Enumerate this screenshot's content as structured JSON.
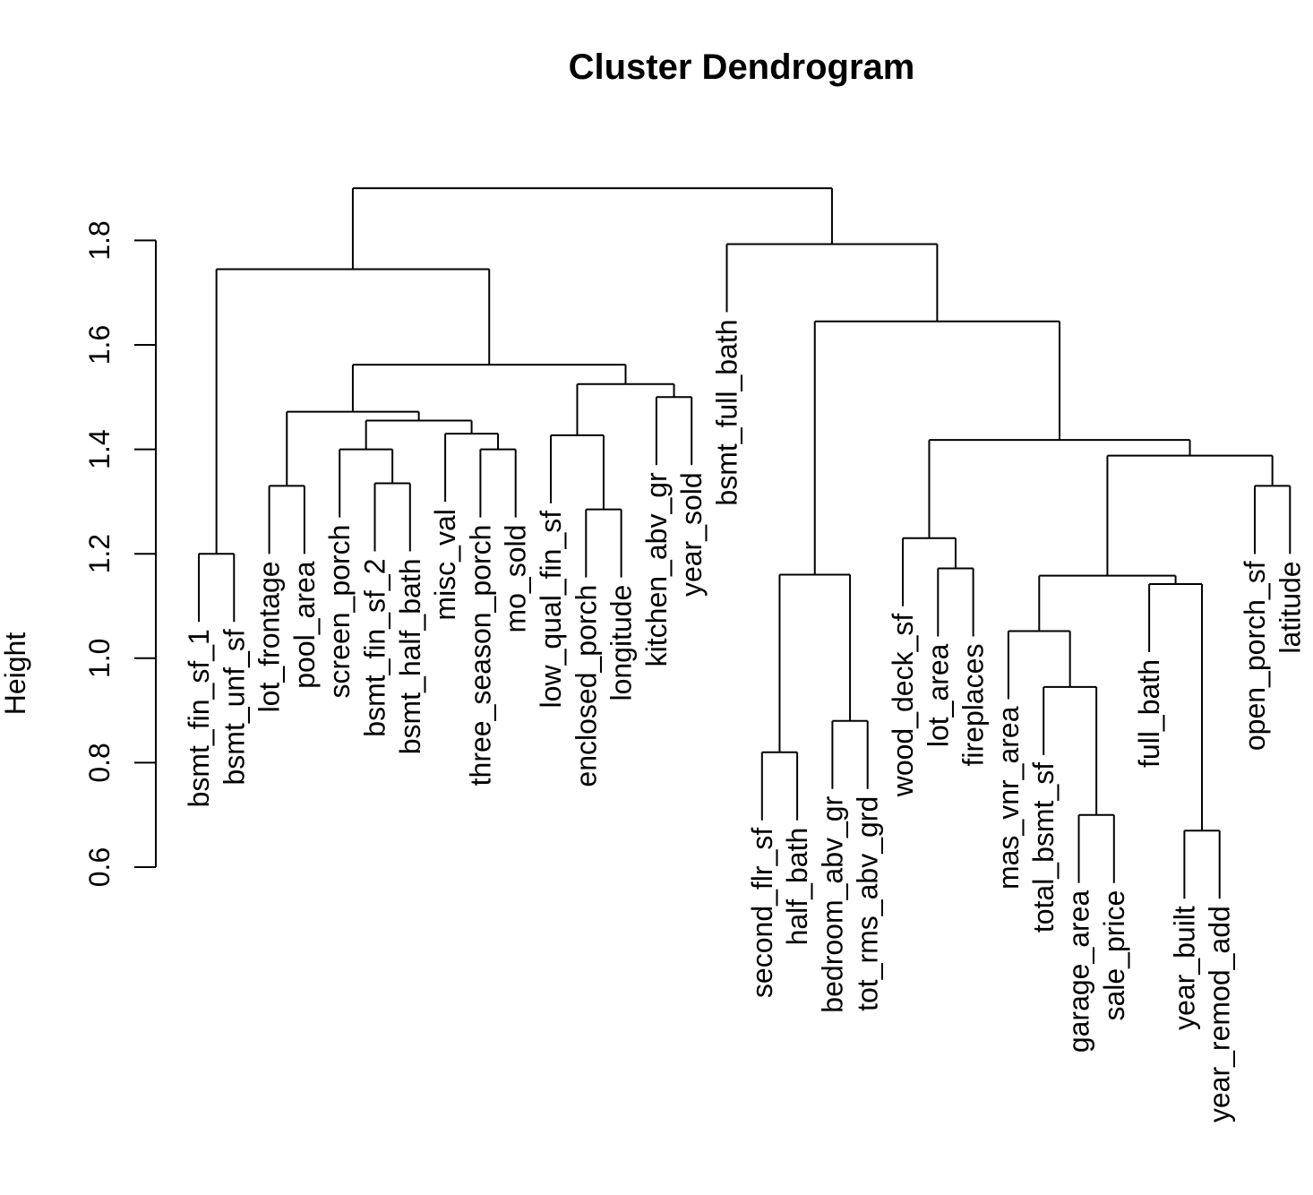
{
  "chart_data": {
    "type": "dendrogram",
    "title": "Cluster Dendrogram",
    "ylabel": "Height",
    "xlabel": "",
    "yticks": [
      0.6,
      0.8,
      1.0,
      1.2,
      1.4,
      1.6,
      1.8
    ],
    "ylim": [
      0.6,
      1.9
    ],
    "leaves": [
      "bsmt_fin_sf_1",
      "bsmt_unf_sf",
      "lot_frontage",
      "pool_area",
      "screen_porch",
      "bsmt_fin_sf_2",
      "bsmt_half_bath",
      "misc_val",
      "three_season_porch",
      "mo_sold",
      "low_qual_fin_sf",
      "enclosed_porch",
      "longitude",
      "kitchen_abv_gr",
      "year_sold",
      "bsmt_full_bath",
      "second_flr_sf",
      "half_bath",
      "bedroom_abv_gr",
      "tot_rms_abv_grd",
      "wood_deck_sf",
      "lot_area",
      "fireplaces",
      "mas_vnr_area",
      "total_bsmt_sf",
      "garage_area",
      "sale_price",
      "full_bath",
      "year_built",
      "year_remod_add",
      "open_porch_sf",
      "latitude"
    ],
    "merges": [
      {
        "a": "bsmt_fin_sf_1",
        "b": "bsmt_unf_sf",
        "height": 1.2
      },
      {
        "a": "lot_frontage",
        "b": "pool_area",
        "height": 1.33
      },
      {
        "a": "bsmt_fin_sf_2",
        "b": "bsmt_half_bath",
        "height": 1.335
      },
      {
        "a": "screen_porch",
        "b": "m3",
        "height": 1.4
      },
      {
        "a": "three_season_porch",
        "b": "mo_sold",
        "height": 1.4
      },
      {
        "a": "misc_val",
        "b": "m5",
        "height": 1.43
      },
      {
        "a": "m4",
        "b": "m6",
        "height": 1.455
      },
      {
        "a": "m2",
        "b": "m7",
        "height": 1.472
      },
      {
        "a": "enclosed_porch",
        "b": "longitude",
        "height": 1.285
      },
      {
        "a": "low_qual_fin_sf",
        "b": "m9",
        "height": 1.427
      },
      {
        "a": "kitchen_abv_gr",
        "b": "year_sold",
        "height": 1.5
      },
      {
        "a": "m10",
        "b": "m11",
        "height": 1.525
      },
      {
        "a": "m8",
        "b": "m12",
        "height": 1.562
      },
      {
        "a": "m1",
        "b": "m13",
        "height": 1.745
      },
      {
        "a": "second_flr_sf",
        "b": "half_bath",
        "height": 0.82
      },
      {
        "a": "bedroom_abv_gr",
        "b": "tot_rms_abv_grd",
        "height": 0.88
      },
      {
        "a": "m15",
        "b": "m16",
        "height": 1.16
      },
      {
        "a": "lot_area",
        "b": "fireplaces",
        "height": 1.172
      },
      {
        "a": "wood_deck_sf",
        "b": "m18",
        "height": 1.23
      },
      {
        "a": "garage_area",
        "b": "sale_price",
        "height": 0.7
      },
      {
        "a": "total_bsmt_sf",
        "b": "m20",
        "height": 0.945
      },
      {
        "a": "mas_vnr_area",
        "b": "m21",
        "height": 1.052
      },
      {
        "a": "year_built",
        "b": "year_remod_add",
        "height": 0.67
      },
      {
        "a": "full_bath",
        "b": "m23",
        "height": 1.142
      },
      {
        "a": "m22",
        "b": "m24",
        "height": 1.158
      },
      {
        "a": "open_porch_sf",
        "b": "latitude",
        "height": 1.33
      },
      {
        "a": "m25",
        "b": "m26",
        "height": 1.388
      },
      {
        "a": "m19",
        "b": "m27",
        "height": 1.418
      },
      {
        "a": "m17",
        "b": "m28",
        "height": 1.645
      },
      {
        "a": "bsmt_full_bath",
        "b": "m29",
        "height": 1.793
      },
      {
        "a": "m14",
        "b": "m30",
        "height": 1.9
      }
    ],
    "grid": false,
    "legend": "none"
  }
}
